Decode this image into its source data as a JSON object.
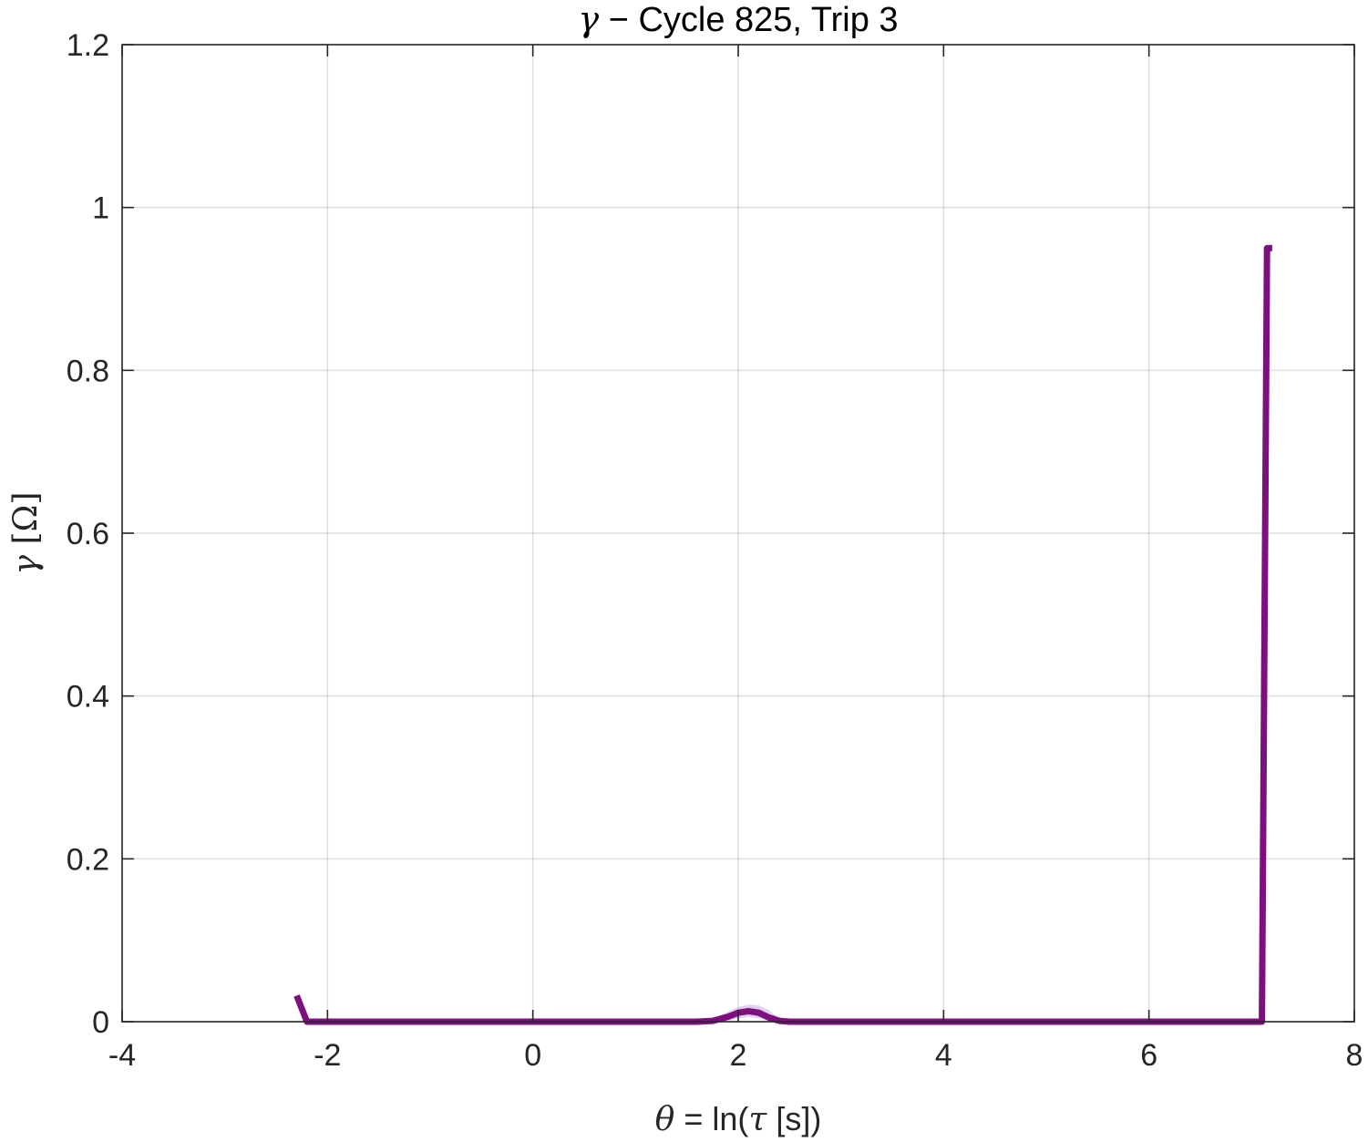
{
  "chart_data": {
    "type": "line",
    "title": {
      "symbol": "γ",
      "separator": " − ",
      "text": "Cycle 825, Trip 3"
    },
    "xlabel": {
      "symbol": "θ",
      "mid": " = ln(",
      "symbol2": "τ",
      "end": " [s])"
    },
    "ylabel": {
      "symbol": "γ",
      "unit": " [Ω]"
    },
    "xlim": [
      -4,
      8
    ],
    "ylim": [
      0,
      1.2
    ],
    "xticks": [
      -4,
      -2,
      0,
      2,
      4,
      6,
      8
    ],
    "xtick_labels": [
      "-4",
      "-2",
      "0",
      "2",
      "4",
      "6",
      "8"
    ],
    "yticks": [
      0,
      0.2,
      0.4,
      0.6,
      0.8,
      1,
      1.2
    ],
    "ytick_labels": [
      "0",
      "0.2",
      "0.4",
      "0.6",
      "0.8",
      "1",
      "1.2"
    ],
    "grid": true,
    "series": [
      {
        "color": "#7E0F7E",
        "x": [
          -2.3,
          -2.2,
          -2.0,
          -1.0,
          0.0,
          1.0,
          1.6,
          1.75,
          1.9,
          2.0,
          2.1,
          2.2,
          2.3,
          2.4,
          2.5,
          3.0,
          4.0,
          5.0,
          6.0,
          7.0,
          7.1,
          7.15,
          7.2
        ],
        "y": [
          0.032,
          0.0,
          0.0,
          0.0,
          0.0,
          0.0,
          0.0,
          0.001,
          0.006,
          0.011,
          0.013,
          0.011,
          0.005,
          0.001,
          0.0,
          0.0,
          0.0,
          0.0,
          0.0,
          0.0,
          0.0,
          0.95,
          0.95
        ]
      }
    ],
    "confidence_band": {
      "color": "#C8A8E8",
      "x": [
        1.6,
        1.75,
        1.9,
        2.0,
        2.1,
        2.2,
        2.3,
        2.4,
        2.5
      ],
      "lower": [
        0.0,
        0.0,
        0.002,
        0.004,
        0.006,
        0.004,
        0.001,
        0.0,
        0.0
      ],
      "upper": [
        0.0,
        0.003,
        0.012,
        0.018,
        0.021,
        0.02,
        0.014,
        0.004,
        0.0
      ]
    }
  }
}
